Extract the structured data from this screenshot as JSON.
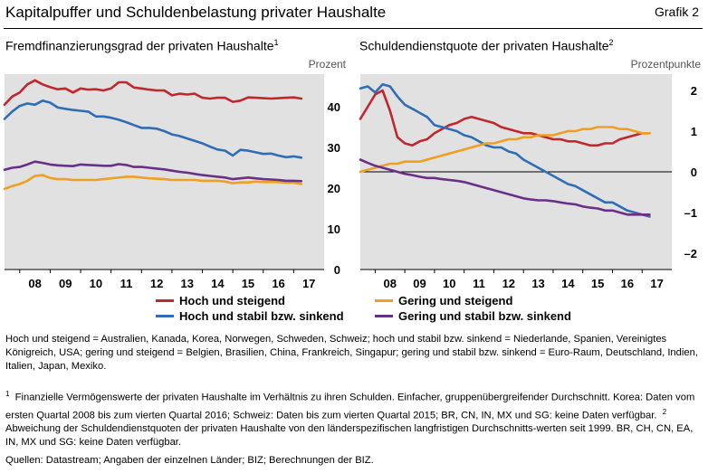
{
  "header": {
    "title": "Kapitalpuffer und Schuldenbelastung privater Haushalte",
    "figure_label": "Grafik 2"
  },
  "chart_data": [
    {
      "type": "line",
      "title": "Fremdfinanzierungsgrad der privaten Haushalte",
      "title_footnote": "1",
      "unit": "Prozent",
      "xlim": [
        2007.5,
        2018.0
      ],
      "ylim": [
        0,
        48
      ],
      "x_ticks": [
        "08",
        "09",
        "10",
        "11",
        "12",
        "13",
        "14",
        "15",
        "16",
        "17"
      ],
      "y_ticks": [
        0,
        10,
        20,
        30,
        40
      ],
      "y_tick_labels": [
        "0",
        "10",
        "20",
        "30",
        "40"
      ],
      "grid": false,
      "series": [
        {
          "name": "Hoch und steigend",
          "color": "#c0282d",
          "x": [
            2007.5,
            2007.75,
            2008.0,
            2008.25,
            2008.5,
            2008.75,
            2009.0,
            2009.25,
            2009.5,
            2009.75,
            2010.0,
            2010.25,
            2010.5,
            2010.75,
            2011.0,
            2011.25,
            2011.5,
            2011.75,
            2012.0,
            2012.25,
            2012.5,
            2012.75,
            2013.0,
            2013.25,
            2013.5,
            2013.75,
            2014.0,
            2014.25,
            2014.5,
            2014.75,
            2015.0,
            2015.25,
            2015.5,
            2015.75,
            2016.0,
            2016.25,
            2016.5,
            2016.75,
            2017.0,
            2017.25
          ],
          "values": [
            40.5,
            42.5,
            43.5,
            45.5,
            46.5,
            45.5,
            44.8,
            44.3,
            44.5,
            43.5,
            44.5,
            44.2,
            44.3,
            44.0,
            44.5,
            46.0,
            46.0,
            44.7,
            44.5,
            44.2,
            44.0,
            44.0,
            42.8,
            43.2,
            43.0,
            43.2,
            42.2,
            42.0,
            42.2,
            42.2,
            41.2,
            41.5,
            42.3,
            42.2,
            42.1,
            42.0,
            42.1,
            42.2,
            42.3,
            42.0
          ]
        },
        {
          "name": "Hoch und stabil bzw. sinkend",
          "color": "#2f6eb5",
          "x": [
            2007.5,
            2007.75,
            2008.0,
            2008.25,
            2008.5,
            2008.75,
            2009.0,
            2009.25,
            2009.5,
            2009.75,
            2010.0,
            2010.25,
            2010.5,
            2010.75,
            2011.0,
            2011.25,
            2011.5,
            2011.75,
            2012.0,
            2012.25,
            2012.5,
            2012.75,
            2013.0,
            2013.25,
            2013.5,
            2013.75,
            2014.0,
            2014.25,
            2014.5,
            2014.75,
            2015.0,
            2015.25,
            2015.5,
            2015.75,
            2016.0,
            2016.25,
            2016.5,
            2016.75,
            2017.0,
            2017.25
          ],
          "values": [
            37.0,
            38.8,
            40.2,
            40.8,
            40.5,
            41.5,
            41.0,
            39.8,
            39.5,
            39.2,
            39.0,
            38.8,
            37.6,
            37.6,
            37.3,
            36.8,
            36.2,
            35.5,
            34.8,
            34.8,
            34.6,
            34.0,
            33.2,
            32.8,
            32.2,
            31.6,
            31.0,
            30.2,
            29.5,
            29.2,
            28.0,
            29.4,
            29.2,
            28.8,
            28.4,
            28.5,
            28.0,
            27.6,
            27.8,
            27.5
          ]
        },
        {
          "name": "Gering und steigend",
          "color": "#f0a020",
          "x": [
            2007.5,
            2007.75,
            2008.0,
            2008.25,
            2008.5,
            2008.75,
            2009.0,
            2009.25,
            2009.5,
            2009.75,
            2010.0,
            2010.25,
            2010.5,
            2010.75,
            2011.0,
            2011.25,
            2011.5,
            2011.75,
            2012.0,
            2012.25,
            2012.5,
            2012.75,
            2013.0,
            2013.25,
            2013.5,
            2013.75,
            2014.0,
            2014.25,
            2014.5,
            2014.75,
            2015.0,
            2015.25,
            2015.5,
            2015.75,
            2016.0,
            2016.25,
            2016.5,
            2016.75,
            2017.0,
            2017.25
          ],
          "values": [
            19.8,
            20.5,
            21.0,
            21.8,
            23.0,
            23.2,
            22.5,
            22.2,
            22.2,
            22.0,
            22.0,
            22.0,
            22.0,
            22.2,
            22.4,
            22.6,
            22.8,
            22.8,
            22.6,
            22.4,
            22.3,
            22.2,
            22.0,
            22.0,
            22.0,
            22.0,
            21.8,
            21.8,
            21.8,
            21.6,
            21.2,
            21.4,
            21.4,
            21.6,
            21.5,
            21.5,
            21.5,
            21.3,
            21.3,
            21.0
          ]
        },
        {
          "name": "Gering und stabil bzw. sinkend",
          "color": "#6a2f87",
          "x": [
            2007.5,
            2007.75,
            2008.0,
            2008.25,
            2008.5,
            2008.75,
            2009.0,
            2009.25,
            2009.5,
            2009.75,
            2010.0,
            2010.25,
            2010.5,
            2010.75,
            2011.0,
            2011.25,
            2011.5,
            2011.75,
            2012.0,
            2012.25,
            2012.5,
            2012.75,
            2013.0,
            2013.25,
            2013.5,
            2013.75,
            2014.0,
            2014.25,
            2014.5,
            2014.75,
            2015.0,
            2015.25,
            2015.5,
            2015.75,
            2016.0,
            2016.25,
            2016.5,
            2016.75,
            2017.0,
            2017.25
          ],
          "values": [
            24.5,
            25.0,
            25.2,
            25.8,
            26.5,
            26.2,
            25.8,
            25.6,
            25.5,
            25.4,
            25.8,
            25.7,
            25.6,
            25.5,
            25.5,
            25.9,
            25.7,
            25.2,
            25.2,
            25.0,
            24.8,
            24.6,
            24.3,
            24.0,
            23.8,
            23.5,
            23.2,
            23.0,
            22.8,
            22.6,
            22.2,
            22.4,
            22.6,
            22.4,
            22.2,
            22.1,
            22.0,
            21.8,
            21.8,
            21.7
          ]
        }
      ]
    },
    {
      "type": "line",
      "title": "Schuldendienstquote der privaten Haushalte",
      "title_footnote": "2",
      "unit": "Prozentpunkte",
      "xlim": [
        2007.5,
        2018.0
      ],
      "ylim": [
        -2.4,
        2.4
      ],
      "x_ticks": [
        "08",
        "09",
        "10",
        "11",
        "12",
        "13",
        "14",
        "15",
        "16",
        "17"
      ],
      "y_ticks": [
        -2,
        -1,
        0,
        1,
        2
      ],
      "y_tick_labels": [
        "–2",
        "–1",
        "0",
        "1",
        "2"
      ],
      "zero_line": true,
      "grid": false,
      "series": [
        {
          "name": "Hoch und steigend",
          "color": "#c0282d",
          "x": [
            2007.5,
            2007.75,
            2008.0,
            2008.25,
            2008.5,
            2008.75,
            2009.0,
            2009.25,
            2009.5,
            2009.75,
            2010.0,
            2010.25,
            2010.5,
            2010.75,
            2011.0,
            2011.25,
            2011.5,
            2011.75,
            2012.0,
            2012.25,
            2012.5,
            2012.75,
            2013.0,
            2013.25,
            2013.5,
            2013.75,
            2014.0,
            2014.25,
            2014.5,
            2014.75,
            2015.0,
            2015.25,
            2015.5,
            2015.75,
            2016.0,
            2016.25,
            2016.5,
            2016.75,
            2017.0,
            2017.25
          ],
          "values": [
            1.3,
            1.6,
            1.9,
            2.0,
            1.5,
            0.85,
            0.7,
            0.65,
            0.75,
            0.8,
            0.95,
            1.05,
            1.15,
            1.2,
            1.3,
            1.35,
            1.3,
            1.25,
            1.2,
            1.1,
            1.05,
            1.0,
            0.95,
            0.95,
            0.9,
            0.85,
            0.8,
            0.8,
            0.75,
            0.75,
            0.7,
            0.65,
            0.65,
            0.7,
            0.7,
            0.8,
            0.85,
            0.9,
            0.95,
            0.95
          ]
        },
        {
          "name": "Hoch und stabil bzw. sinkend",
          "color": "#2f6eb5",
          "x": [
            2007.5,
            2007.75,
            2008.0,
            2008.25,
            2008.5,
            2008.75,
            2009.0,
            2009.25,
            2009.5,
            2009.75,
            2010.0,
            2010.25,
            2010.5,
            2010.75,
            2011.0,
            2011.25,
            2011.5,
            2011.75,
            2012.0,
            2012.25,
            2012.5,
            2012.75,
            2013.0,
            2013.25,
            2013.5,
            2013.75,
            2014.0,
            2014.25,
            2014.5,
            2014.75,
            2015.0,
            2015.25,
            2015.5,
            2015.75,
            2016.0,
            2016.25,
            2016.5,
            2016.75,
            2017.0,
            2017.25
          ],
          "values": [
            2.05,
            2.1,
            1.95,
            2.15,
            2.1,
            1.85,
            1.65,
            1.55,
            1.45,
            1.35,
            1.15,
            1.1,
            1.05,
            1.0,
            0.9,
            0.85,
            0.75,
            0.65,
            0.6,
            0.6,
            0.5,
            0.45,
            0.3,
            0.2,
            0.1,
            0.0,
            -0.1,
            -0.2,
            -0.3,
            -0.35,
            -0.45,
            -0.55,
            -0.65,
            -0.75,
            -0.75,
            -0.85,
            -0.95,
            -1.0,
            -1.05,
            -1.1
          ]
        },
        {
          "name": "Gering und steigend",
          "color": "#f0a020",
          "x": [
            2007.5,
            2007.75,
            2008.0,
            2008.25,
            2008.5,
            2008.75,
            2009.0,
            2009.25,
            2009.5,
            2009.75,
            2010.0,
            2010.25,
            2010.5,
            2010.75,
            2011.0,
            2011.25,
            2011.5,
            2011.75,
            2012.0,
            2012.25,
            2012.5,
            2012.75,
            2013.0,
            2013.25,
            2013.5,
            2013.75,
            2014.0,
            2014.25,
            2014.5,
            2014.75,
            2015.0,
            2015.25,
            2015.5,
            2015.75,
            2016.0,
            2016.25,
            2016.5,
            2016.75,
            2017.0,
            2017.25
          ],
          "values": [
            0.0,
            0.05,
            0.1,
            0.15,
            0.2,
            0.2,
            0.25,
            0.25,
            0.25,
            0.3,
            0.35,
            0.4,
            0.45,
            0.5,
            0.55,
            0.6,
            0.65,
            0.7,
            0.7,
            0.75,
            0.8,
            0.8,
            0.85,
            0.85,
            0.9,
            0.9,
            0.9,
            0.95,
            1.0,
            1.0,
            1.05,
            1.05,
            1.1,
            1.1,
            1.1,
            1.05,
            1.05,
            1.0,
            0.95,
            0.95
          ]
        },
        {
          "name": "Gering und stabil bzw. sinkend",
          "color": "#6a2f87",
          "x": [
            2007.5,
            2007.75,
            2008.0,
            2008.25,
            2008.5,
            2008.75,
            2009.0,
            2009.25,
            2009.5,
            2009.75,
            2010.0,
            2010.25,
            2010.5,
            2010.75,
            2011.0,
            2011.25,
            2011.5,
            2011.75,
            2012.0,
            2012.25,
            2012.5,
            2012.75,
            2013.0,
            2013.25,
            2013.5,
            2013.75,
            2014.0,
            2014.25,
            2014.5,
            2014.75,
            2015.0,
            2015.25,
            2015.5,
            2015.75,
            2016.0,
            2016.25,
            2016.5,
            2016.75,
            2017.0,
            2017.25
          ],
          "values": [
            0.3,
            0.22,
            0.15,
            0.1,
            0.05,
            0.0,
            -0.05,
            -0.08,
            -0.12,
            -0.15,
            -0.15,
            -0.18,
            -0.2,
            -0.22,
            -0.25,
            -0.3,
            -0.35,
            -0.4,
            -0.45,
            -0.5,
            -0.55,
            -0.6,
            -0.65,
            -0.68,
            -0.7,
            -0.7,
            -0.72,
            -0.75,
            -0.78,
            -0.8,
            -0.85,
            -0.88,
            -0.9,
            -0.95,
            -0.95,
            -1.0,
            -1.05,
            -1.05,
            -1.05,
            -1.05
          ]
        }
      ]
    }
  ],
  "legend": {
    "left": [
      {
        "label": "Hoch und steigend",
        "color": "#c0282d"
      },
      {
        "label": "Hoch und stabil bzw. sinkend",
        "color": "#2f6eb5"
      }
    ],
    "right": [
      {
        "label": "Gering und steigend",
        "color": "#f0a020"
      },
      {
        "label": "Gering und stabil bzw. sinkend",
        "color": "#6a2f87"
      }
    ]
  },
  "notes": {
    "groups": "Hoch und steigend = Australien, Kanada, Korea, Norwegen, Schweden, Schweiz; hoch und stabil bzw. sinkend = Niederlande, Spanien, Vereinigtes Königreich, USA; gering und steigend = Belgien, Brasilien, China, Frankreich, Singapur; gering und stabil bzw. sinkend = Euro-Raum, Deutschland, Indien, Italien, Japan, Mexiko.",
    "footnote1_mark": "1",
    "footnote1": "Finanzielle Vermögenswerte der privaten Haushalte im Verhältnis zu ihren Schulden. Einfacher, gruppenübergreifender Durchschnitt. Korea: Daten vom ersten Quartal 2008 bis zum vierten Quartal 2016; Schweiz: Daten bis zum vierten Quartal 2015; BR, CN, IN, MX und SG: keine Daten verfügbar.",
    "footnote2_mark": "2",
    "footnote2": "Abweichung der Schuldendienstquoten der privaten Haushalte von den länderspezifischen langfristigen Durchschnitts-werten seit 1999. BR, CH, CN, EA, IN, MX und SG: keine Daten verfügbar.",
    "sources": "Quellen: Datastream; Angaben der einzelnen Länder; BIZ; Berechnungen der BIZ."
  }
}
